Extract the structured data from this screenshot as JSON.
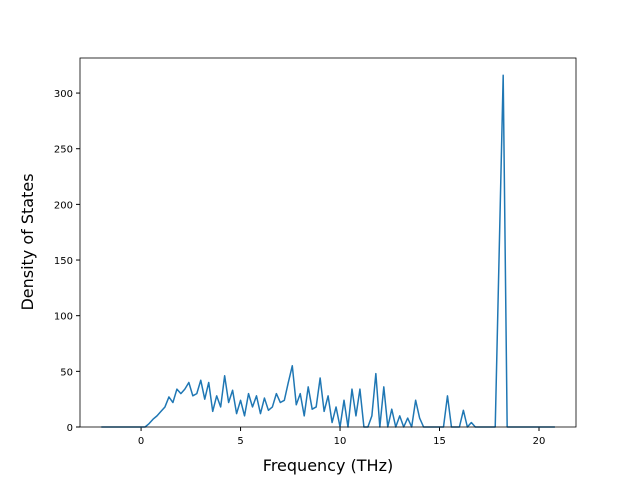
{
  "chart_data": {
    "type": "line",
    "x_label": "Frequency (THz)",
    "y_label": "Density of States",
    "x": [
      -2,
      -1.8,
      -1.6,
      -1.4,
      -1.2,
      -1,
      -0.8,
      -0.6,
      -0.4,
      -0.2,
      0,
      0.2,
      0.4,
      0.6,
      0.8,
      1,
      1.2,
      1.4,
      1.6,
      1.8,
      2,
      2.2,
      2.4,
      2.6,
      2.8,
      3,
      3.2,
      3.4,
      3.6,
      3.8,
      4,
      4.2,
      4.4,
      4.6,
      4.8,
      5,
      5.2,
      5.4,
      5.6,
      5.8,
      6,
      6.2,
      6.4,
      6.6,
      6.8,
      7,
      7.2,
      7.4,
      7.6,
      7.8,
      8,
      8.2,
      8.4,
      8.6,
      8.8,
      9,
      9.2,
      9.4,
      9.6,
      9.8,
      10,
      10.2,
      10.4,
      10.6,
      10.8,
      11,
      11.2,
      11.4,
      11.6,
      11.8,
      12,
      12.2,
      12.4,
      12.6,
      12.8,
      13,
      13.2,
      13.4,
      13.6,
      13.8,
      14,
      14.2,
      14.4,
      14.6,
      14.8,
      15,
      15.2,
      15.4,
      15.6,
      15.8,
      16,
      16.2,
      16.4,
      16.6,
      16.8,
      17,
      17.2,
      17.4,
      17.6,
      17.8,
      18,
      18.2,
      18.4,
      18.6,
      18.8,
      19,
      19.2,
      19.4,
      19.6,
      19.8,
      20,
      20.2,
      20.4,
      20.6,
      20.8
    ],
    "series": [
      {
        "color": "#1f77b4",
        "values": [
          0,
          0,
          0,
          0,
          0,
          0,
          0,
          0,
          0,
          0,
          0,
          0,
          3,
          7,
          10,
          14,
          18,
          27,
          22,
          34,
          30,
          34,
          40,
          28,
          30,
          42,
          25,
          40,
          14,
          28,
          18,
          46,
          22,
          33,
          12,
          24,
          10,
          30,
          18,
          28,
          12,
          26,
          15,
          18,
          30,
          22,
          24,
          40,
          55,
          20,
          30,
          10,
          36,
          16,
          18,
          44,
          14,
          28,
          4,
          18,
          0,
          24,
          0,
          34,
          10,
          34,
          0,
          0,
          10,
          48,
          0,
          36,
          0,
          16,
          0,
          10,
          0,
          8,
          0,
          24,
          8,
          0,
          0,
          0,
          0,
          0,
          0,
          28,
          0,
          0,
          0,
          15,
          0,
          4,
          0,
          0,
          0,
          0,
          0,
          0,
          158,
          316,
          0,
          0,
          0,
          0,
          0,
          0,
          0,
          0,
          0,
          0,
          0,
          0,
          0
        ]
      }
    ],
    "xlim": [
      -3.07,
      21.86
    ],
    "ylim": [
      0,
      331.5
    ],
    "xticks": [
      0,
      5,
      10,
      15,
      20
    ],
    "yticks": [
      0,
      50,
      100,
      150,
      200,
      250,
      300
    ]
  }
}
